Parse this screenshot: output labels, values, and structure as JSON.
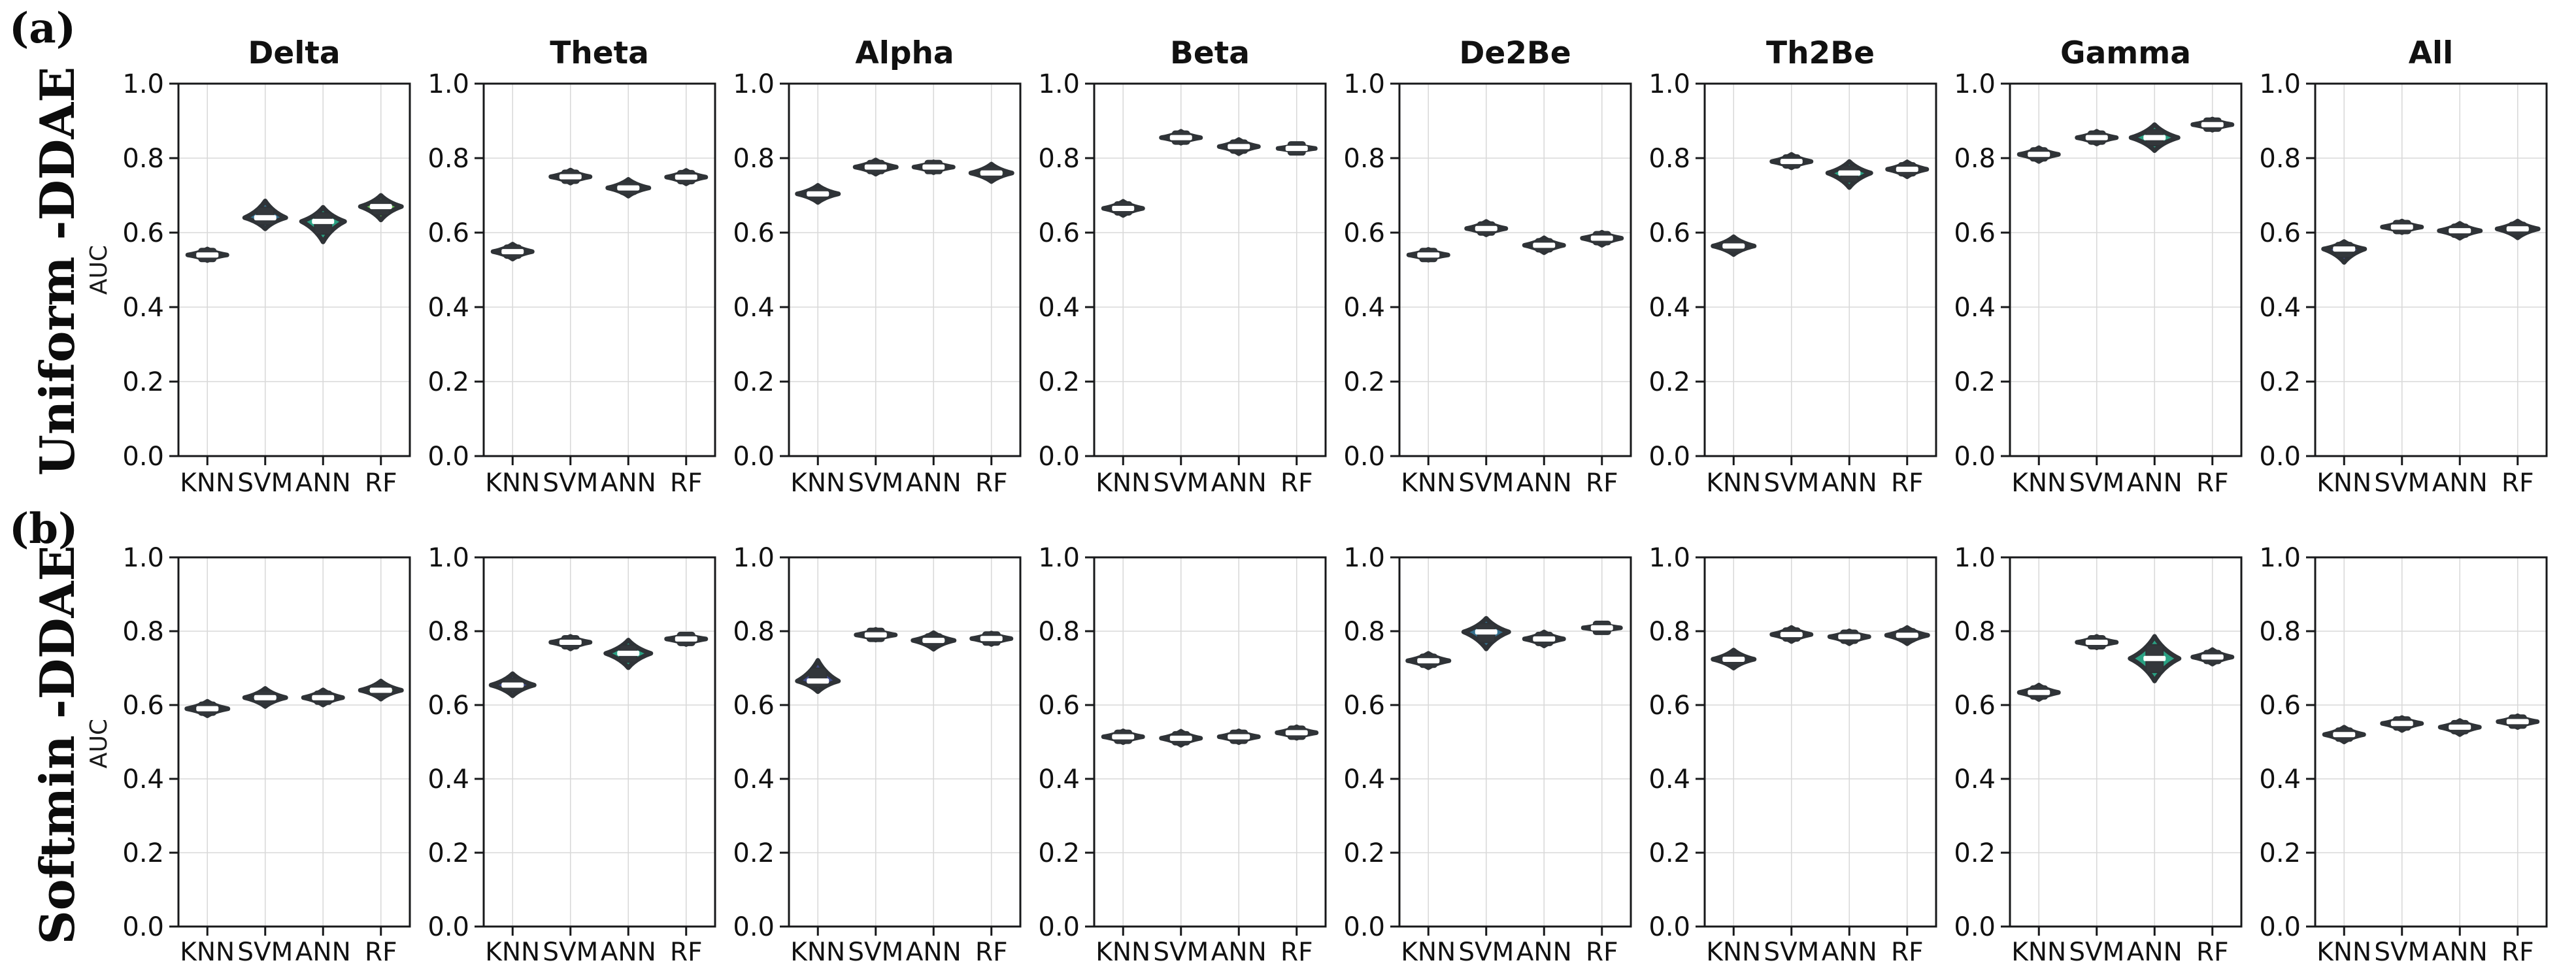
{
  "figure": {
    "background": "#ffffff",
    "ylabel": "AUC"
  },
  "colors": {
    "series_colors": {
      "KNN": "#414c8c",
      "SVM": "#35708e",
      "ANN": "#2aa183",
      "RF": "#68c157"
    },
    "violin_edge": "#2f3337",
    "box_fill": "#33373b",
    "median_bar": "#ffffff",
    "axis": "#17181a",
    "grid": "#d9d9d9",
    "text": "#111111"
  },
  "chart_data": {
    "type": "violin",
    "ylabel": "AUC",
    "ylim": [
      0.0,
      1.0
    ],
    "yticks": [
      0.0,
      0.2,
      0.4,
      0.6,
      0.8,
      1.0
    ],
    "categories": [
      "KNN",
      "SVM",
      "ANN",
      "RF"
    ],
    "grid": "on",
    "legend_position": "none",
    "rows": [
      {
        "id": "a",
        "panel_label": "(a)",
        "row_title": "Uniform -DDAE",
        "ylabel": "AUC",
        "panels": [
          {
            "title": "Delta",
            "violins": [
              {
                "model": "KNN",
                "median": 0.54,
                "lo": 0.525,
                "hi": 0.556,
                "w": 1.0
              },
              {
                "model": "SVM",
                "median": 0.64,
                "lo": 0.61,
                "hi": 0.685,
                "w": 1.05
              },
              {
                "model": "ANN",
                "median": 0.63,
                "lo": 0.575,
                "hi": 0.668,
                "w": 1.1
              },
              {
                "model": "RF",
                "median": 0.67,
                "lo": 0.634,
                "hi": 0.7,
                "w": 1.05
              }
            ]
          },
          {
            "title": "Theta",
            "violins": [
              {
                "model": "KNN",
                "median": 0.549,
                "lo": 0.529,
                "hi": 0.569,
                "w": 1.0
              },
              {
                "model": "SVM",
                "median": 0.75,
                "lo": 0.733,
                "hi": 0.768,
                "w": 1.0
              },
              {
                "model": "ANN",
                "median": 0.72,
                "lo": 0.698,
                "hi": 0.743,
                "w": 1.05
              },
              {
                "model": "RF",
                "median": 0.749,
                "lo": 0.731,
                "hi": 0.767,
                "w": 1.0
              }
            ]
          },
          {
            "title": "Alpha",
            "violins": [
              {
                "model": "KNN",
                "median": 0.704,
                "lo": 0.681,
                "hi": 0.727,
                "w": 1.05
              },
              {
                "model": "SVM",
                "median": 0.776,
                "lo": 0.757,
                "hi": 0.795,
                "w": 1.05
              },
              {
                "model": "ANN",
                "median": 0.776,
                "lo": 0.761,
                "hi": 0.79,
                "w": 1.0
              },
              {
                "model": "RF",
                "median": 0.76,
                "lo": 0.737,
                "hi": 0.784,
                "w": 1.05
              }
            ]
          },
          {
            "title": "Beta",
            "violins": [
              {
                "model": "KNN",
                "median": 0.665,
                "lo": 0.646,
                "hi": 0.684,
                "w": 1.0
              },
              {
                "model": "SVM",
                "median": 0.855,
                "lo": 0.84,
                "hi": 0.872,
                "w": 1.0
              },
              {
                "model": "ANN",
                "median": 0.831,
                "lo": 0.812,
                "hi": 0.85,
                "w": 1.0
              },
              {
                "model": "RF",
                "median": 0.826,
                "lo": 0.818,
                "hi": 0.835,
                "w": 0.95
              }
            ]
          },
          {
            "title": "De2Be",
            "violins": [
              {
                "model": "KNN",
                "median": 0.54,
                "lo": 0.526,
                "hi": 0.555,
                "w": 1.0
              },
              {
                "model": "SVM",
                "median": 0.611,
                "lo": 0.594,
                "hi": 0.63,
                "w": 1.0
              },
              {
                "model": "ANN",
                "median": 0.566,
                "lo": 0.546,
                "hi": 0.586,
                "w": 1.0
              },
              {
                "model": "RF",
                "median": 0.585,
                "lo": 0.566,
                "hi": 0.601,
                "w": 1.0
              }
            ]
          },
          {
            "title": "Th2Be",
            "violins": [
              {
                "model": "KNN",
                "median": 0.564,
                "lo": 0.541,
                "hi": 0.589,
                "w": 1.05
              },
              {
                "model": "SVM",
                "median": 0.791,
                "lo": 0.774,
                "hi": 0.81,
                "w": 1.0
              },
              {
                "model": "ANN",
                "median": 0.76,
                "lo": 0.721,
                "hi": 0.791,
                "w": 1.1
              },
              {
                "model": "RF",
                "median": 0.77,
                "lo": 0.75,
                "hi": 0.79,
                "w": 1.0
              }
            ]
          },
          {
            "title": "Gamma",
            "violins": [
              {
                "model": "KNN",
                "median": 0.81,
                "lo": 0.791,
                "hi": 0.828,
                "w": 1.0
              },
              {
                "model": "SVM",
                "median": 0.855,
                "lo": 0.838,
                "hi": 0.872,
                "w": 1.0
              },
              {
                "model": "ANN",
                "median": 0.855,
                "lo": 0.82,
                "hi": 0.89,
                "w": 1.2
              },
              {
                "model": "RF",
                "median": 0.89,
                "lo": 0.875,
                "hi": 0.905,
                "w": 1.0
              }
            ]
          },
          {
            "title": "All",
            "violins": [
              {
                "model": "KNN",
                "median": 0.556,
                "lo": 0.52,
                "hi": 0.576,
                "w": 1.05
              },
              {
                "model": "SVM",
                "median": 0.615,
                "lo": 0.6,
                "hi": 0.631,
                "w": 1.0
              },
              {
                "model": "ANN",
                "median": 0.605,
                "lo": 0.585,
                "hi": 0.625,
                "w": 1.05
              },
              {
                "model": "RF",
                "median": 0.61,
                "lo": 0.586,
                "hi": 0.631,
                "w": 1.05
              }
            ]
          }
        ]
      },
      {
        "id": "b",
        "panel_label": "(b)",
        "row_title": "Softmin -DDAE",
        "ylabel": "AUC",
        "panels": [
          {
            "title": "",
            "violins": [
              {
                "model": "KNN",
                "median": 0.59,
                "lo": 0.571,
                "hi": 0.61,
                "w": 1.05
              },
              {
                "model": "SVM",
                "median": 0.62,
                "lo": 0.596,
                "hi": 0.645,
                "w": 1.05
              },
              {
                "model": "ANN",
                "median": 0.62,
                "lo": 0.6,
                "hi": 0.641,
                "w": 1.0
              },
              {
                "model": "RF",
                "median": 0.64,
                "lo": 0.616,
                "hi": 0.665,
                "w": 1.05
              }
            ]
          },
          {
            "title": "",
            "violins": [
              {
                "model": "KNN",
                "median": 0.654,
                "lo": 0.625,
                "hi": 0.685,
                "w": 1.1
              },
              {
                "model": "SVM",
                "median": 0.77,
                "lo": 0.752,
                "hi": 0.786,
                "w": 1.0
              },
              {
                "model": "ANN",
                "median": 0.74,
                "lo": 0.701,
                "hi": 0.776,
                "w": 1.15
              },
              {
                "model": "RF",
                "median": 0.779,
                "lo": 0.764,
                "hi": 0.792,
                "w": 1.0
              }
            ]
          },
          {
            "title": "",
            "violins": [
              {
                "model": "KNN",
                "median": 0.665,
                "lo": 0.636,
                "hi": 0.721,
                "w": 1.05
              },
              {
                "model": "SVM",
                "median": 0.79,
                "lo": 0.776,
                "hi": 0.805,
                "w": 1.0
              },
              {
                "model": "ANN",
                "median": 0.775,
                "lo": 0.751,
                "hi": 0.796,
                "w": 1.05
              },
              {
                "model": "RF",
                "median": 0.78,
                "lo": 0.764,
                "hi": 0.795,
                "w": 1.0
              }
            ]
          },
          {
            "title": "",
            "violins": [
              {
                "model": "KNN",
                "median": 0.514,
                "lo": 0.498,
                "hi": 0.53,
                "w": 1.0
              },
              {
                "model": "SVM",
                "median": 0.51,
                "lo": 0.491,
                "hi": 0.529,
                "w": 1.0
              },
              {
                "model": "ANN",
                "median": 0.514,
                "lo": 0.498,
                "hi": 0.53,
                "w": 1.0
              },
              {
                "model": "RF",
                "median": 0.525,
                "lo": 0.51,
                "hi": 0.541,
                "w": 1.0
              }
            ]
          },
          {
            "title": "",
            "violins": [
              {
                "model": "KNN",
                "median": 0.72,
                "lo": 0.701,
                "hi": 0.74,
                "w": 1.05
              },
              {
                "model": "SVM",
                "median": 0.798,
                "lo": 0.752,
                "hi": 0.835,
                "w": 1.15
              },
              {
                "model": "ANN",
                "median": 0.779,
                "lo": 0.76,
                "hi": 0.798,
                "w": 1.0
              },
              {
                "model": "RF",
                "median": 0.809,
                "lo": 0.801,
                "hi": 0.817,
                "w": 0.95
              }
            ]
          },
          {
            "title": "",
            "violins": [
              {
                "model": "KNN",
                "median": 0.724,
                "lo": 0.7,
                "hi": 0.749,
                "w": 1.05
              },
              {
                "model": "SVM",
                "median": 0.791,
                "lo": 0.772,
                "hi": 0.81,
                "w": 1.0
              },
              {
                "model": "ANN",
                "median": 0.785,
                "lo": 0.766,
                "hi": 0.801,
                "w": 1.0
              },
              {
                "model": "RF",
                "median": 0.789,
                "lo": 0.766,
                "hi": 0.81,
                "w": 1.05
              }
            ]
          },
          {
            "title": "",
            "violins": [
              {
                "model": "KNN",
                "median": 0.634,
                "lo": 0.615,
                "hi": 0.654,
                "w": 1.0
              },
              {
                "model": "SVM",
                "median": 0.77,
                "lo": 0.755,
                "hi": 0.786,
                "w": 1.0
              },
              {
                "model": "ANN",
                "median": 0.726,
                "lo": 0.665,
                "hi": 0.786,
                "w": 1.25
              },
              {
                "model": "RF",
                "median": 0.73,
                "lo": 0.711,
                "hi": 0.75,
                "w": 1.0
              }
            ]
          },
          {
            "title": "",
            "violins": [
              {
                "model": "KNN",
                "median": 0.52,
                "lo": 0.5,
                "hi": 0.54,
                "w": 1.0
              },
              {
                "model": "SVM",
                "median": 0.55,
                "lo": 0.531,
                "hi": 0.566,
                "w": 1.0
              },
              {
                "model": "ANN",
                "median": 0.54,
                "lo": 0.52,
                "hi": 0.558,
                "w": 1.0
              },
              {
                "model": "RF",
                "median": 0.555,
                "lo": 0.539,
                "hi": 0.571,
                "w": 1.0
              }
            ]
          }
        ]
      }
    ]
  }
}
